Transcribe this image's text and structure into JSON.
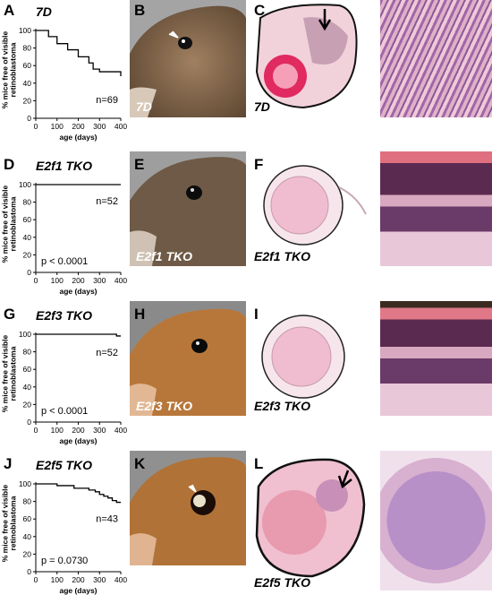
{
  "panels": [
    {
      "chart_label": "A",
      "photo_label": "B",
      "histo_label": "C",
      "genotype": "7D",
      "photo_caption": "7D",
      "histo_caption": "7D",
      "n_text": "n=69",
      "p_text": ""
    },
    {
      "chart_label": "D",
      "photo_label": "E",
      "histo_label": "F",
      "genotype": "E2f1 TKO",
      "photo_caption": "E2f1 TKO",
      "histo_caption": "E2f1 TKO",
      "n_text": "n=52",
      "p_text": "p < 0.0001"
    },
    {
      "chart_label": "G",
      "photo_label": "H",
      "histo_label": "I",
      "genotype": "E2f3 TKO",
      "photo_caption": "E2f3 TKO",
      "histo_caption": "E2f3 TKO",
      "n_text": "n=52",
      "p_text": "p < 0.0001"
    },
    {
      "chart_label": "J",
      "photo_label": "K",
      "histo_label": "L",
      "genotype": "E2f5 TKO",
      "photo_caption": "E2f5 TKO",
      "histo_caption": "E2f5 TKO",
      "n_text": "n=43",
      "p_text": "p = 0.0730"
    }
  ],
  "chart_data": [
    {
      "type": "line",
      "xlabel": "age (days)",
      "ylabel_line1": "% mice free of visible",
      "ylabel_line2": "retinoblastoma",
      "xlim": [
        0,
        400
      ],
      "ylim": [
        0,
        100
      ],
      "xticks": [
        0,
        100,
        200,
        300,
        400
      ],
      "yticks": [
        0,
        20,
        40,
        60,
        80,
        100
      ],
      "step": true,
      "x": [
        0,
        60,
        60,
        100,
        100,
        150,
        150,
        200,
        200,
        250,
        250,
        270,
        270,
        300,
        300,
        400,
        400
      ],
      "y": [
        100,
        100,
        93,
        93,
        85,
        85,
        78,
        78,
        70,
        70,
        63,
        63,
        56,
        56,
        53,
        53,
        48
      ]
    },
    {
      "type": "line",
      "xlabel": "age (days)",
      "ylabel_line1": "% mice free of visible",
      "ylabel_line2": "retinoblastoma",
      "xlim": [
        0,
        400
      ],
      "ylim": [
        0,
        100
      ],
      "xticks": [
        0,
        100,
        200,
        300,
        400
      ],
      "yticks": [
        0,
        20,
        40,
        60,
        80,
        100
      ],
      "step": true,
      "x": [
        0,
        400
      ],
      "y": [
        100,
        100
      ]
    },
    {
      "type": "line",
      "xlabel": "age (days)",
      "ylabel_line1": "% mice free of visible",
      "ylabel_line2": "retinoblastoma",
      "xlim": [
        0,
        400
      ],
      "ylim": [
        0,
        100
      ],
      "xticks": [
        0,
        100,
        200,
        300,
        400
      ],
      "yticks": [
        0,
        20,
        40,
        60,
        80,
        100
      ],
      "step": true,
      "x": [
        0,
        380,
        380,
        400
      ],
      "y": [
        100,
        100,
        98,
        98
      ]
    },
    {
      "type": "line",
      "xlabel": "age (days)",
      "ylabel_line1": "% mice free of visible",
      "ylabel_line2": "retinoblastoma",
      "xlim": [
        0,
        400
      ],
      "ylim": [
        0,
        100
      ],
      "xticks": [
        0,
        100,
        200,
        300,
        400
      ],
      "yticks": [
        0,
        20,
        40,
        60,
        80,
        100
      ],
      "step": true,
      "x": [
        0,
        100,
        100,
        180,
        180,
        250,
        250,
        280,
        280,
        300,
        300,
        320,
        320,
        340,
        340,
        360,
        360,
        380,
        380,
        400
      ],
      "y": [
        100,
        100,
        98,
        98,
        95,
        95,
        93,
        93,
        91,
        91,
        88,
        88,
        86,
        86,
        84,
        84,
        81,
        81,
        79,
        79
      ]
    }
  ],
  "colors": {
    "photo_bg_gray": "#9a9a9a",
    "fur_brown": "#8a6a48",
    "fur_orange": "#b87a3e",
    "he_pink": "#e8a8b8",
    "he_purple": "#7a4a8a"
  }
}
